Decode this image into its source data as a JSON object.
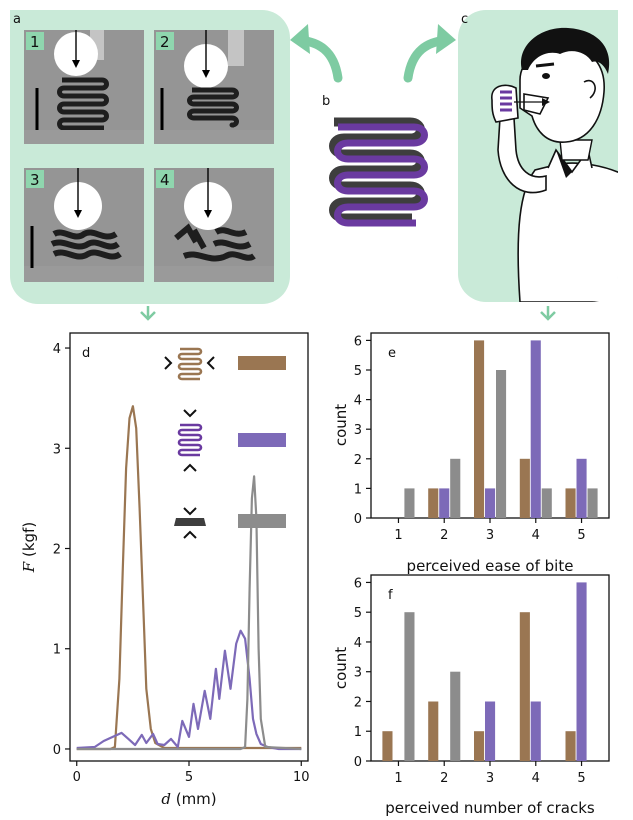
{
  "panel_labels": {
    "a": "a",
    "b": "b",
    "c": "c",
    "d": "d",
    "e": "e",
    "f": "f"
  },
  "frame_numbers": [
    "1",
    "2",
    "3",
    "4"
  ],
  "colors": {
    "brown": "#9a7652",
    "purple": "#7d6ab8",
    "gray": "#8c8c8c",
    "panel_bg": "#c9ead8",
    "arrow": "#7ecba2",
    "spring_fill": "#6a3aa0",
    "spring_dark": "#3e3e3e"
  },
  "chart_data": [
    {
      "id": "d",
      "type": "line",
      "xlabel_var": "d",
      "xlabel_unit": " (mm)",
      "ylabel_var": "F",
      "ylabel_unit": " (kgf)",
      "xlim": [
        -0.3,
        10.3
      ],
      "ylim": [
        -0.12,
        4.15
      ],
      "xticks": [
        0,
        5,
        10
      ],
      "yticks": [
        0,
        1,
        2,
        3,
        4
      ],
      "grid": false,
      "legend": "top-right",
      "series": [
        {
          "color": "brown",
          "x": [
            0,
            1.5,
            1.7,
            1.9,
            2.05,
            2.2,
            2.35,
            2.5,
            2.65,
            2.8,
            3.0,
            3.1,
            3.3,
            3.5,
            3.9,
            10
          ],
          "y": [
            0,
            0,
            0.02,
            0.7,
            1.8,
            2.8,
            3.3,
            3.42,
            3.2,
            2.4,
            1.2,
            0.6,
            0.2,
            0.06,
            0.01,
            0.01
          ]
        },
        {
          "color": "purple",
          "x": [
            0,
            0.8,
            1.2,
            1.6,
            2.0,
            2.3,
            2.6,
            2.9,
            3.1,
            3.4,
            3.6,
            3.9,
            4.2,
            4.5,
            4.7,
            5.0,
            5.2,
            5.4,
            5.7,
            5.95,
            6.2,
            6.35,
            6.6,
            6.85,
            7.1,
            7.3,
            7.5,
            7.7,
            7.85,
            8.0,
            8.2,
            8.5,
            9.0,
            10
          ],
          "y": [
            0.01,
            0.02,
            0.08,
            0.12,
            0.16,
            0.1,
            0.04,
            0.14,
            0.06,
            0.15,
            0.05,
            0.04,
            0.1,
            0.02,
            0.28,
            0.12,
            0.45,
            0.2,
            0.58,
            0.3,
            0.8,
            0.5,
            0.98,
            0.6,
            1.05,
            1.18,
            1.1,
            0.7,
            0.3,
            0.15,
            0.05,
            0.02,
            0.0,
            0.0
          ]
        },
        {
          "color": "gray",
          "x": [
            0,
            7.3,
            7.5,
            7.6,
            7.7,
            7.8,
            7.9,
            8.0,
            8.1,
            8.2,
            8.4,
            10
          ],
          "y": [
            0,
            0,
            0.02,
            0.5,
            1.6,
            2.5,
            2.72,
            2.3,
            1.0,
            0.3,
            0.02,
            0
          ]
        }
      ]
    },
    {
      "id": "e",
      "type": "bar",
      "xlabel": "perceived ease of bite",
      "ylabel": "count",
      "categories": [
        1,
        2,
        3,
        4,
        5
      ],
      "xlim": [
        0.4,
        5.6
      ],
      "ylim": [
        0,
        6.25
      ],
      "yticks": [
        0,
        1,
        2,
        3,
        4,
        5,
        6
      ],
      "grid": false,
      "series": [
        {
          "color": "brown",
          "values": [
            0,
            1,
            6,
            2,
            1
          ]
        },
        {
          "color": "purple",
          "values": [
            0,
            1,
            1,
            6,
            2
          ]
        },
        {
          "color": "gray",
          "values": [
            1,
            2,
            5,
            1,
            1
          ]
        }
      ]
    },
    {
      "id": "f",
      "type": "bar",
      "xlabel": "perceived number of cracks",
      "ylabel": "count",
      "categories": [
        1,
        2,
        3,
        4,
        5
      ],
      "xlim": [
        0.4,
        5.6
      ],
      "ylim": [
        0,
        6.25
      ],
      "yticks": [
        0,
        1,
        2,
        3,
        4,
        5,
        6
      ],
      "grid": false,
      "series": [
        {
          "color": "brown",
          "values": [
            1,
            2,
            1,
            5,
            1
          ]
        },
        {
          "color": "purple",
          "values": [
            0,
            0,
            2,
            2,
            6
          ]
        },
        {
          "color": "gray",
          "values": [
            5,
            3,
            0,
            0,
            0
          ]
        }
      ]
    }
  ]
}
